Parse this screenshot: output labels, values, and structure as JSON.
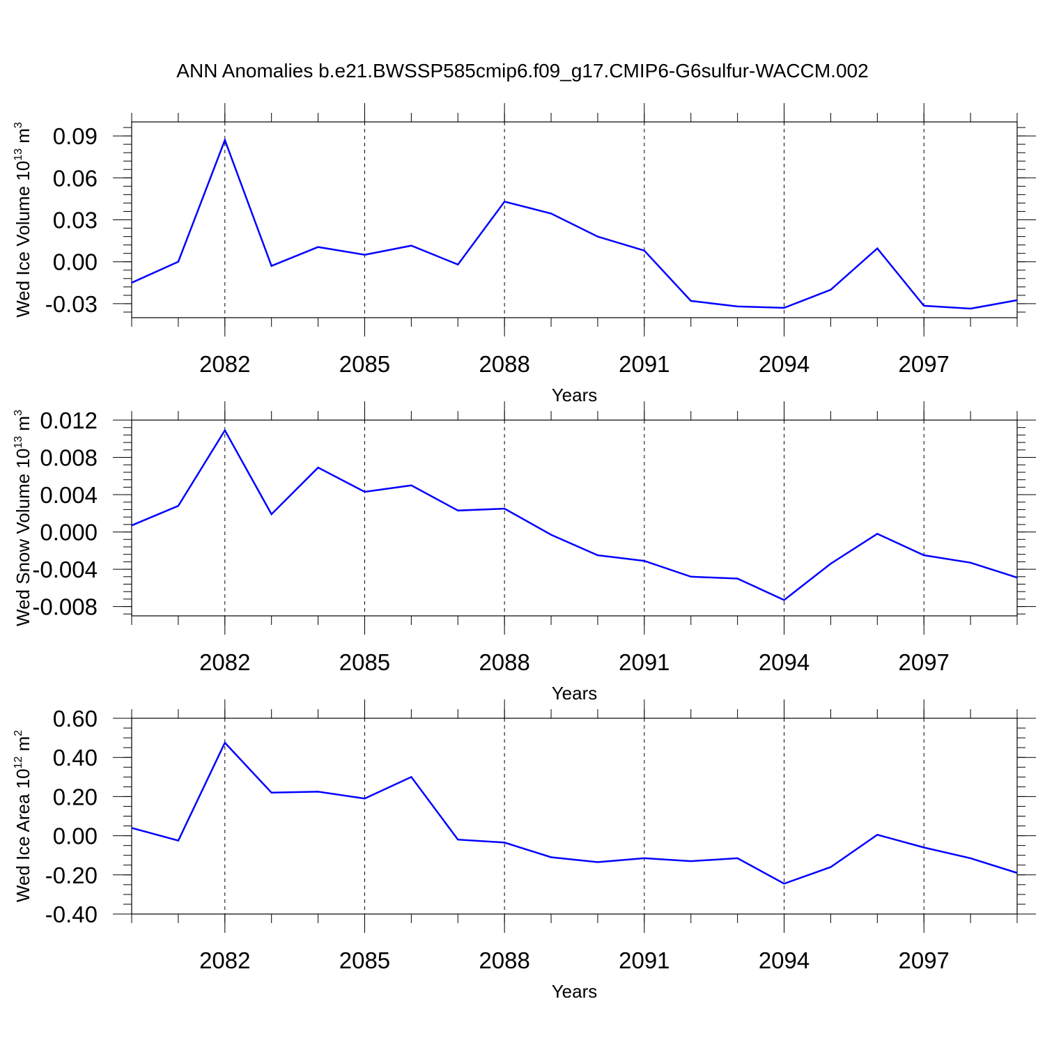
{
  "title": "ANN Anomalies b.e21.BWSSP585cmip6.f09_g17.CMIP6-G6sulfur-WACCM.002",
  "line_color": "#0000ff",
  "chart_data": [
    {
      "type": "line",
      "ylabel_main": "Wed Ice Volume 10",
      "ylabel_exp": "13",
      "ylabel_unit": " m",
      "ylabel_unit_exp": "3",
      "xlabel": "Years",
      "xlim": [
        2080,
        2099
      ],
      "ylim": [
        -0.04,
        0.1
      ],
      "yticks": [
        -0.03,
        0.0,
        0.03,
        0.06,
        0.09
      ],
      "ytick_labels": [
        "-0.03",
        "0.00",
        "0.03",
        "0.06",
        "0.09"
      ],
      "yminor_step": 0.006,
      "xticks": [
        2082,
        2085,
        2088,
        2091,
        2094,
        2097
      ],
      "xtick_labels": [
        "2082",
        "2085",
        "2088",
        "2091",
        "2094",
        "2097"
      ],
      "grid": "vertical dashed at major x ticks",
      "x": [
        2080,
        2081,
        2082,
        2083,
        2084,
        2085,
        2086,
        2087,
        2088,
        2089,
        2090,
        2091,
        2092,
        2093,
        2094,
        2095,
        2096,
        2097,
        2098,
        2099
      ],
      "y": [
        -0.015,
        0.0,
        0.087,
        -0.003,
        0.0105,
        0.005,
        0.0115,
        -0.002,
        0.043,
        0.0345,
        0.018,
        0.008,
        -0.028,
        -0.032,
        -0.033,
        -0.02,
        0.0095,
        -0.0315,
        -0.0335,
        -0.0275
      ]
    },
    {
      "type": "line",
      "ylabel_main": "Wed Snow Volume 10",
      "ylabel_exp": "13",
      "ylabel_unit": " m",
      "ylabel_unit_exp": "3",
      "xlabel": "Years",
      "xlim": [
        2080,
        2099
      ],
      "ylim": [
        -0.009,
        0.012
      ],
      "yticks": [
        -0.008,
        -0.004,
        0.0,
        0.004,
        0.008,
        0.012
      ],
      "ytick_labels": [
        "-0.008",
        "-0.004",
        "0.000",
        "0.004",
        "0.008",
        "0.012"
      ],
      "yminor_step": 0.0008,
      "xticks": [
        2082,
        2085,
        2088,
        2091,
        2094,
        2097
      ],
      "xtick_labels": [
        "2082",
        "2085",
        "2088",
        "2091",
        "2094",
        "2097"
      ],
      "grid": "vertical dashed at major x ticks",
      "x": [
        2080,
        2081,
        2082,
        2083,
        2084,
        2085,
        2086,
        2087,
        2088,
        2089,
        2090,
        2091,
        2092,
        2093,
        2094,
        2095,
        2096,
        2097,
        2098,
        2099
      ],
      "y": [
        0.0007,
        0.0028,
        0.0109,
        0.0019,
        0.0069,
        0.0043,
        0.005,
        0.0023,
        0.0025,
        -0.0003,
        -0.0025,
        -0.0031,
        -0.0048,
        -0.005,
        -0.0073,
        -0.0034,
        -0.0002,
        -0.0025,
        -0.0033,
        -0.0049
      ]
    },
    {
      "type": "line",
      "ylabel_main": "Wed Ice Area 10",
      "ylabel_exp": "12",
      "ylabel_unit": " m",
      "ylabel_unit_exp": "2",
      "xlabel": "Years",
      "xlim": [
        2080,
        2099
      ],
      "ylim": [
        -0.4,
        0.6
      ],
      "yticks": [
        -0.4,
        -0.2,
        0.0,
        0.2,
        0.4,
        0.6
      ],
      "ytick_labels": [
        "-0.40",
        "-0.20",
        "0.00",
        "0.20",
        "0.40",
        "0.60"
      ],
      "yminor_step": 0.05,
      "xticks": [
        2082,
        2085,
        2088,
        2091,
        2094,
        2097
      ],
      "xtick_labels": [
        "2082",
        "2085",
        "2088",
        "2091",
        "2094",
        "2097"
      ],
      "grid": "vertical dashed at major x ticks",
      "x": [
        2080,
        2081,
        2082,
        2083,
        2084,
        2085,
        2086,
        2087,
        2088,
        2089,
        2090,
        2091,
        2092,
        2093,
        2094,
        2095,
        2096,
        2097,
        2098,
        2099
      ],
      "y": [
        0.04,
        -0.025,
        0.475,
        0.22,
        0.225,
        0.19,
        0.3,
        -0.02,
        -0.035,
        -0.11,
        -0.135,
        -0.115,
        -0.13,
        -0.115,
        -0.245,
        -0.16,
        0.005,
        -0.06,
        -0.115,
        -0.19
      ]
    }
  ]
}
